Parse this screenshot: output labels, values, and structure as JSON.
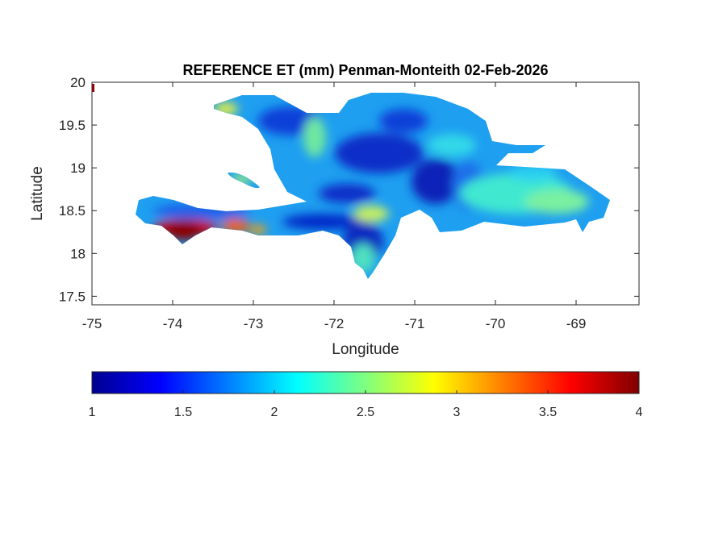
{
  "chart_data": {
    "type": "heatmap",
    "title": "REFERENCE ET (mm) Penman-Monteith 02-Feb-2026",
    "xlabel": "Longitude",
    "ylabel": "Latitude",
    "xlim": [
      -75,
      -68.22
    ],
    "ylim": [
      17.4,
      20
    ],
    "xticks": [
      -75,
      -74,
      -73,
      -72,
      -71,
      -70,
      -69
    ],
    "yticks": [
      17.5,
      18,
      18.5,
      19,
      19.5,
      20
    ],
    "grid": false,
    "colormap": "jet",
    "colorbar": {
      "location": "bottom",
      "range": [
        1,
        4
      ],
      "ticks": [
        1,
        1.5,
        2,
        2.5,
        3,
        3.5,
        4
      ],
      "tick_labels": [
        "1",
        "1.5",
        "2",
        "2.5",
        "3",
        "3.5",
        "4"
      ]
    },
    "description_values": {
      "dominant_range": [
        1.3,
        2.6
      ],
      "max_region": "southwest peninsula coast",
      "max_value_approx": 4
    }
  }
}
